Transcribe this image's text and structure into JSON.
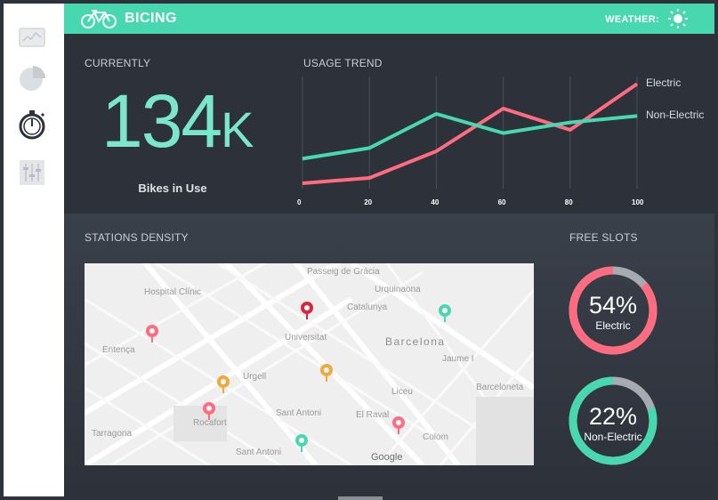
{
  "app": {
    "title": "BICING"
  },
  "header": {
    "weather_label": "WEATHER:",
    "weather_icon": "sun-icon"
  },
  "sidebar": {
    "items": [
      {
        "icon": "line-chart-icon"
      },
      {
        "icon": "pie-chart-icon"
      },
      {
        "icon": "stopwatch-icon",
        "active": true
      },
      {
        "icon": "equalizer-icon"
      }
    ]
  },
  "currently": {
    "label": "CURRENTLY",
    "value": "134",
    "unit": "K",
    "caption": "Bikes in Use",
    "color": "#7ae7cd"
  },
  "usage_trend": {
    "label": "USAGE TREND",
    "chart_data": {
      "type": "line",
      "x": [
        0,
        20,
        40,
        60,
        80,
        100
      ],
      "xticks": [
        "0",
        "20",
        "40",
        "60",
        "80",
        "100"
      ],
      "series": [
        {
          "name": "Electric",
          "color": "#ff6b7f",
          "values": [
            5,
            10,
            35,
            75,
            55,
            98
          ]
        },
        {
          "name": "Non-Electric",
          "color": "#47d8b0",
          "values": [
            28,
            38,
            70,
            52,
            62,
            68
          ]
        }
      ],
      "ylim": [
        0,
        100
      ],
      "grid": "vertical"
    }
  },
  "stations": {
    "label": "STATIONS DENSITY",
    "district_label": "Barcelona",
    "map_attribution": "Google",
    "place_labels": [
      "Hospital Clínic",
      "Passeig de Gràcia",
      "Catalunya",
      "Urgell",
      "Rocafort",
      "Sant Antoni",
      "El Raval",
      "Liceu",
      "Jaume I",
      "Universitat",
      "Tarragona",
      "Entença",
      "Sant Antoni",
      "Barceloneta",
      "Urquinaona",
      "Colom"
    ]
  },
  "free_slots": {
    "label": "FREE SLOTS",
    "items": [
      {
        "pct_label": "54%",
        "value": 54,
        "name": "Electric",
        "color": "#ff6b7f"
      },
      {
        "pct_label": "22%",
        "value": 22,
        "name": "Non-Electric",
        "color": "#47d8b0"
      }
    ]
  }
}
